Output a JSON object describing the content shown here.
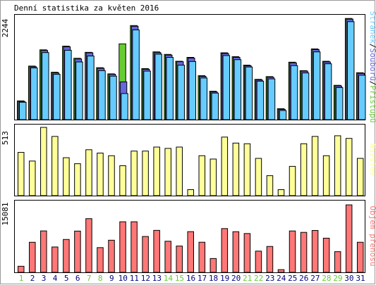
{
  "title": "Denní statistika za květen 2016",
  "colors": {
    "pages": "#66ccff",
    "files": "#6666dd",
    "hits": "#66cc33",
    "visits": "#ffff99",
    "traffic": "#ff7777",
    "weekend": "#66cc33",
    "weekday": "#000080"
  },
  "chart_data": [
    {
      "type": "bar",
      "title": "Denní statistika za květen 2016",
      "xlabel": "",
      "ylabel": "2244",
      "legend": "right",
      "legend_label_parts": [
        "Stránek",
        "Souborů",
        "Přístupů"
      ],
      "categories": [
        "1",
        "2",
        "3",
        "4",
        "5",
        "6",
        "7",
        "8",
        "9",
        "10",
        "11",
        "12",
        "13",
        "14",
        "15",
        "16",
        "17",
        "18",
        "19",
        "20",
        "21",
        "22",
        "23",
        "24",
        "25",
        "26",
        "27",
        "28",
        "29",
        "30",
        "31"
      ],
      "ylim": [
        0,
        2244
      ],
      "series": [
        {
          "name": "Přístupů",
          "values": [
            410,
            1170,
            1525,
            1035,
            1605,
            1340,
            1470,
            1135,
            1000,
            1655,
            2055,
            1115,
            1480,
            1425,
            1275,
            1360,
            960,
            620,
            1460,
            1375,
            1190,
            880,
            940,
            240,
            1255,
            1070,
            1545,
            1275,
            750,
            2210,
            1025
          ]
        },
        {
          "name": "Souborů",
          "values": [
            395,
            1155,
            1510,
            1020,
            1590,
            1325,
            1460,
            1120,
            990,
            825,
            2040,
            1100,
            1465,
            1410,
            1265,
            1345,
            945,
            605,
            1445,
            1360,
            1175,
            865,
            925,
            225,
            1240,
            1060,
            1530,
            1260,
            735,
            2195,
            1010
          ]
        },
        {
          "name": "Stránek",
          "values": [
            380,
            1130,
            1465,
            990,
            1515,
            1260,
            1390,
            1070,
            950,
            570,
            1960,
            1060,
            1430,
            1360,
            1190,
            1270,
            910,
            580,
            1400,
            1310,
            1150,
            840,
            890,
            200,
            1180,
            1020,
            1480,
            1220,
            700,
            2140,
            970
          ]
        }
      ]
    },
    {
      "type": "bar",
      "title": "",
      "xlabel": "",
      "ylabel": "513",
      "legend": "right",
      "categories": [
        "1",
        "2",
        "3",
        "4",
        "5",
        "6",
        "7",
        "8",
        "9",
        "10",
        "11",
        "12",
        "13",
        "14",
        "15",
        "16",
        "17",
        "18",
        "19",
        "20",
        "21",
        "22",
        "23",
        "24",
        "25",
        "26",
        "27",
        "28",
        "29",
        "30",
        "31"
      ],
      "ylim": [
        0,
        513
      ],
      "series": [
        {
          "name": "Návštěv",
          "values": [
            325,
            260,
            513,
            445,
            285,
            240,
            345,
            320,
            300,
            225,
            335,
            335,
            365,
            355,
            365,
            45,
            300,
            275,
            440,
            395,
            390,
            280,
            150,
            45,
            220,
            390,
            445,
            300,
            450,
            430,
            280
          ]
        }
      ]
    },
    {
      "type": "bar",
      "title": "",
      "xlabel": "",
      "ylabel": "15081",
      "legend": "right",
      "categories": [
        "1",
        "2",
        "3",
        "4",
        "5",
        "6",
        "7",
        "8",
        "9",
        "10",
        "11",
        "12",
        "13",
        "14",
        "15",
        "16",
        "17",
        "18",
        "19",
        "20",
        "21",
        "22",
        "23",
        "24",
        "25",
        "26",
        "27",
        "28",
        "29",
        "30",
        "31"
      ],
      "ylim": [
        0,
        15081
      ],
      "series": [
        {
          "name": "Objem přenosu",
          "values": [
            1330,
            6575,
            9060,
            5545,
            7190,
            9020,
            11740,
            5410,
            7025,
            11060,
            11060,
            7840,
            9180,
            6800,
            5750,
            8900,
            6585,
            3020,
            9570,
            8890,
            8490,
            4640,
            5660,
            590,
            9050,
            8740,
            9160,
            7470,
            4520,
            14755,
            6580
          ]
        }
      ]
    }
  ],
  "weekend_days": [
    "1",
    "7",
    "8",
    "14",
    "15",
    "21",
    "22",
    "28",
    "29"
  ]
}
